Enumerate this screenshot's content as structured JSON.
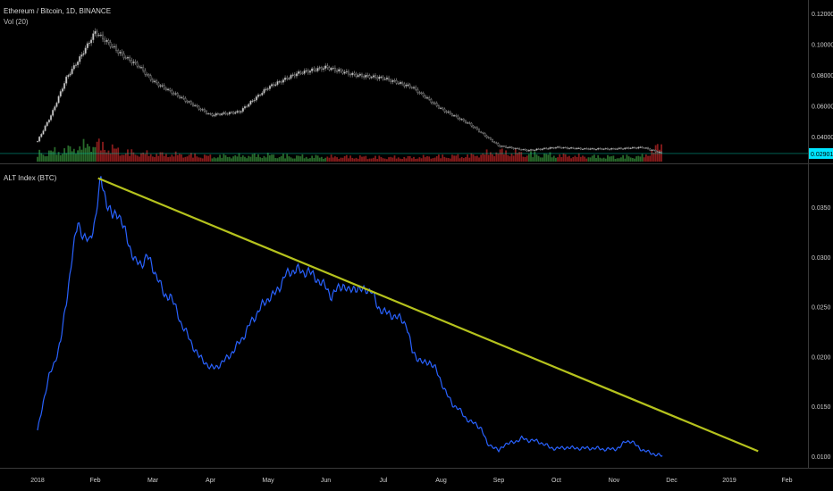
{
  "colors": {
    "background": "#000000",
    "up": "#2f7d32",
    "down": "#a02020",
    "candle_wick": "#9a9a9a",
    "alt_line": "#2962ff",
    "trendline": "#b5c21d",
    "price_badge": "#00e5ff",
    "last_price_line": "#00bfa5",
    "axis_text": "#cfcfcf"
  },
  "top_panel": {
    "symbol_label": "Ethereum / Bitcoin, 1D, BINANCE",
    "volume_label": "Vol (20)",
    "y_ticks": [
      "0.120000",
      "0.100000",
      "0.080000",
      "0.060000",
      "0.040000"
    ],
    "last_price": "0.029012"
  },
  "bottom_panel": {
    "indicator_label": "ALT Index (BTC)",
    "y_ticks": [
      "0.0350",
      "0.0300",
      "0.0250",
      "0.0200",
      "0.0150",
      "0.0100"
    ]
  },
  "x_axis": {
    "ticks": [
      "2018",
      "Feb",
      "Mar",
      "Apr",
      "May",
      "Jun",
      "Jul",
      "Aug",
      "Sep",
      "Oct",
      "Nov",
      "Dec",
      "2019",
      "Feb"
    ]
  },
  "chart_data": [
    {
      "type": "line",
      "title": "Ethereum / Bitcoin, 1D, BINANCE",
      "style": "candlestick with volume",
      "x_unit": "month index (0 = Jan 1 2018)",
      "ylim": [
        0.02,
        0.125
      ],
      "series": [
        {
          "name": "Ethereum / Bitcoin",
          "x": [
            0,
            0.25,
            0.5,
            0.75,
            1.0,
            1.25,
            1.5,
            1.75,
            2.0,
            2.5,
            3.0,
            3.5,
            4.0,
            4.5,
            5.0,
            5.5,
            6.0,
            6.5,
            7.0,
            7.5,
            8.0,
            8.5,
            9.0,
            9.5,
            10.0,
            10.5,
            10.85
          ],
          "close": [
            0.037,
            0.055,
            0.078,
            0.092,
            0.108,
            0.1,
            0.092,
            0.086,
            0.076,
            0.065,
            0.054,
            0.056,
            0.072,
            0.081,
            0.085,
            0.08,
            0.078,
            0.072,
            0.058,
            0.048,
            0.034,
            0.031,
            0.033,
            0.032,
            0.032,
            0.033,
            0.029
          ]
        },
        {
          "name": "Vol (20)",
          "x": [
            0,
            0.5,
            1.0,
            1.5,
            2.0,
            2.5,
            3.0,
            3.5,
            4.0,
            4.5,
            5.0,
            5.5,
            6.0,
            6.5,
            7.0,
            7.5,
            8.0,
            8.5,
            9.0,
            9.5,
            10.0,
            10.5,
            10.85
          ],
          "values": [
            1.6,
            2.2,
            3.4,
            1.8,
            1.4,
            1.3,
            1.0,
            1.1,
            1.2,
            1.0,
            0.9,
            0.9,
            0.8,
            0.8,
            1.0,
            1.1,
            1.9,
            1.5,
            1.2,
            1.0,
            0.9,
            1.0,
            3.2
          ]
        }
      ],
      "last_price": 0.029012
    },
    {
      "type": "line",
      "title": "ALT Index (BTC)",
      "x_unit": "month index (0 = Jan 1 2018)",
      "ylim": [
        0.0085,
        0.039
      ],
      "series": [
        {
          "name": "ALT Index (BTC)",
          "x": [
            0,
            0.1,
            0.2,
            0.3,
            0.4,
            0.5,
            0.6,
            0.7,
            0.8,
            0.9,
            1.0,
            1.1,
            1.2,
            1.3,
            1.4,
            1.5,
            1.6,
            1.7,
            1.8,
            1.9,
            2.0,
            2.1,
            2.2,
            2.3,
            2.4,
            2.5,
            2.6,
            2.7,
            2.8,
            2.9,
            3.0,
            3.1,
            3.2,
            3.3,
            3.4,
            3.5,
            3.6,
            3.7,
            3.8,
            3.9,
            4.0,
            4.1,
            4.2,
            4.3,
            4.4,
            4.5,
            4.6,
            4.7,
            4.8,
            4.9,
            5.0,
            5.1,
            5.2,
            5.3,
            5.4,
            5.5,
            5.6,
            5.7,
            5.8,
            5.9,
            6.0,
            6.1,
            6.2,
            6.3,
            6.4,
            6.5,
            6.6,
            6.7,
            6.8,
            6.9,
            7.0,
            7.1,
            7.2,
            7.3,
            7.4,
            7.5,
            7.6,
            7.7,
            7.8,
            7.9,
            8.0,
            8.1,
            8.2,
            8.3,
            8.4,
            8.5,
            8.6,
            8.7,
            8.8,
            8.9,
            9.0,
            9.1,
            9.2,
            9.3,
            9.4,
            9.5,
            9.6,
            9.7,
            9.8,
            9.9,
            10.0,
            10.1,
            10.2,
            10.3,
            10.4,
            10.5,
            10.6,
            10.7,
            10.85
          ],
          "values": [
            0.0125,
            0.0155,
            0.018,
            0.0195,
            0.0215,
            0.0255,
            0.03,
            0.0335,
            0.032,
            0.0315,
            0.0338,
            0.0378,
            0.0355,
            0.034,
            0.0345,
            0.0328,
            0.031,
            0.0295,
            0.0292,
            0.0302,
            0.0288,
            0.0278,
            0.026,
            0.0262,
            0.0248,
            0.0232,
            0.0222,
            0.021,
            0.02,
            0.0195,
            0.0188,
            0.019,
            0.0193,
            0.02,
            0.0205,
            0.0215,
            0.0222,
            0.0235,
            0.0242,
            0.0252,
            0.0258,
            0.0262,
            0.027,
            0.0282,
            0.0285,
            0.0288,
            0.0284,
            0.0286,
            0.028,
            0.0275,
            0.027,
            0.026,
            0.0268,
            0.0272,
            0.0265,
            0.027,
            0.0266,
            0.0268,
            0.0265,
            0.025,
            0.0245,
            0.0243,
            0.024,
            0.0238,
            0.0232,
            0.0205,
            0.0198,
            0.0193,
            0.0195,
            0.0188,
            0.0175,
            0.0162,
            0.0152,
            0.0148,
            0.014,
            0.0135,
            0.0132,
            0.0128,
            0.0112,
            0.011,
            0.0105,
            0.0112,
            0.0113,
            0.0115,
            0.0118,
            0.0116,
            0.0116,
            0.0114,
            0.0112,
            0.0108,
            0.0108,
            0.0108,
            0.0109,
            0.0108,
            0.0108,
            0.0108,
            0.0108,
            0.0108,
            0.0107,
            0.0107,
            0.0107,
            0.0109,
            0.0115,
            0.0115,
            0.011,
            0.0106,
            0.0104,
            0.0102,
            0.01
          ]
        },
        {
          "name": "trendline",
          "x": [
            1.05,
            12.5
          ],
          "values": [
            0.0379,
            0.0105
          ]
        }
      ]
    }
  ]
}
